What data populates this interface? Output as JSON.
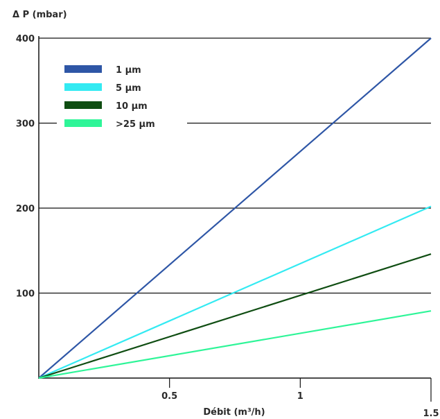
{
  "chart_data": {
    "type": "line",
    "title": "",
    "xlabel": "Débit (m³/h)",
    "ylabel": "Δ P (mbar)",
    "xlim": [
      0,
      1.5
    ],
    "ylim": [
      0,
      400
    ],
    "x_ticks": [
      "0.5",
      "1",
      "1.5"
    ],
    "x_tick_values": [
      0.5,
      1,
      1.5
    ],
    "y_ticks": [
      "100",
      "200",
      "300",
      "400"
    ],
    "y_tick_values": [
      100,
      200,
      300,
      400
    ],
    "grid": "horizontal",
    "legend_position": "top-left",
    "series": [
      {
        "name": "1 µm",
        "color": "#2e56a6",
        "x": [
          0,
          1.5
        ],
        "y": [
          0,
          400
        ]
      },
      {
        "name": "5 µm",
        "color": "#33eaf2",
        "x": [
          0,
          1.5
        ],
        "y": [
          0,
          202
        ]
      },
      {
        "name": "10 µm",
        "color": "#0f4d12",
        "x": [
          0,
          1.5
        ],
        "y": [
          0,
          146
        ]
      },
      {
        "name": ">25 µm",
        "color": "#2ef598",
        "x": [
          0,
          1.5
        ],
        "y": [
          0,
          79
        ]
      }
    ]
  }
}
